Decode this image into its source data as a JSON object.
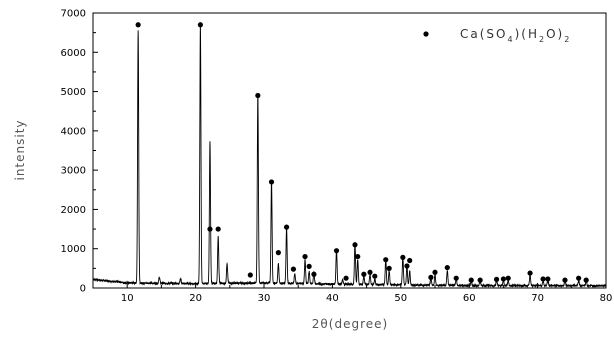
{
  "chart_data": {
    "type": "line",
    "xlabel": "2θ(degree)",
    "ylabel": "intensity",
    "xlim": [
      5,
      80
    ],
    "ylim": [
      0,
      7000
    ],
    "xticks": [
      10,
      20,
      30,
      40,
      50,
      60,
      70,
      80
    ],
    "yticks": [
      0,
      1000,
      2000,
      3000,
      4000,
      5000,
      6000,
      7000
    ],
    "grid": false,
    "legend_position": "top-right",
    "legend": {
      "marker": "filled-circle",
      "parts": [
        {
          "text": "Ca(SO",
          "sub": false
        },
        {
          "text": "4",
          "sub": true
        },
        {
          "text": ")(H",
          "sub": false
        },
        {
          "text": "2",
          "sub": true
        },
        {
          "text": "O)",
          "sub": false
        },
        {
          "text": "2",
          "sub": true
        }
      ]
    },
    "series": [
      {
        "color": "#000000",
        "baseline": [
          [
            5,
            220
          ],
          [
            10,
            130
          ],
          [
            20,
            110
          ],
          [
            30,
            130
          ],
          [
            40,
            100
          ],
          [
            50,
            80
          ],
          [
            60,
            60
          ],
          [
            70,
            60
          ],
          [
            80,
            60
          ]
        ],
        "peaks": [
          [
            11.6,
            6450
          ],
          [
            14.7,
            160
          ],
          [
            17.8,
            130
          ],
          [
            20.7,
            6600
          ],
          [
            22.1,
            3600
          ],
          [
            23.3,
            1200
          ],
          [
            24.6,
            520
          ],
          [
            29.1,
            4800
          ],
          [
            31.1,
            2600
          ],
          [
            32.1,
            500
          ],
          [
            33.3,
            1400
          ],
          [
            34.5,
            250
          ],
          [
            36.0,
            600
          ],
          [
            36.6,
            320
          ],
          [
            37.3,
            280
          ],
          [
            40.6,
            900
          ],
          [
            41.5,
            120
          ],
          [
            43.3,
            1050
          ],
          [
            43.7,
            650
          ],
          [
            44.6,
            220
          ],
          [
            45.5,
            250
          ],
          [
            46.2,
            140
          ],
          [
            47.8,
            650
          ],
          [
            48.3,
            350
          ],
          [
            50.3,
            720
          ],
          [
            50.9,
            480
          ],
          [
            51.3,
            350
          ],
          [
            54.4,
            180
          ],
          [
            55.0,
            280
          ],
          [
            56.8,
            380
          ],
          [
            58.1,
            180
          ],
          [
            60.3,
            130
          ],
          [
            61.6,
            120
          ],
          [
            64.0,
            130
          ],
          [
            65.0,
            150
          ],
          [
            65.7,
            130
          ],
          [
            68.9,
            280
          ],
          [
            70.8,
            140
          ],
          [
            71.5,
            140
          ],
          [
            74.0,
            120
          ],
          [
            76.0,
            130
          ],
          [
            77.1,
            110
          ]
        ],
        "markers": [
          [
            11.6,
            6700
          ],
          [
            20.7,
            6700
          ],
          [
            22.1,
            1500
          ],
          [
            23.3,
            1500
          ],
          [
            29.1,
            4900
          ],
          [
            31.1,
            2700
          ],
          [
            33.3,
            1550
          ],
          [
            32.1,
            900
          ],
          [
            36.0,
            800
          ],
          [
            36.6,
            550
          ],
          [
            37.3,
            350
          ],
          [
            40.6,
            950
          ],
          [
            43.3,
            1100
          ],
          [
            43.7,
            800
          ],
          [
            44.6,
            350
          ],
          [
            45.5,
            400
          ],
          [
            46.2,
            300
          ],
          [
            47.8,
            720
          ],
          [
            48.3,
            500
          ],
          [
            50.3,
            780
          ],
          [
            50.9,
            560
          ],
          [
            51.3,
            700
          ],
          [
            54.4,
            270
          ],
          [
            55.0,
            400
          ],
          [
            56.8,
            520
          ],
          [
            58.1,
            250
          ],
          [
            60.3,
            200
          ],
          [
            61.6,
            200
          ],
          [
            64.0,
            220
          ],
          [
            65.0,
            230
          ],
          [
            65.7,
            250
          ],
          [
            68.9,
            380
          ],
          [
            70.8,
            230
          ],
          [
            71.5,
            230
          ],
          [
            74.0,
            200
          ],
          [
            76.0,
            250
          ],
          [
            77.1,
            200
          ],
          [
            28.0,
            330
          ],
          [
            34.3,
            480
          ],
          [
            42.0,
            250
          ]
        ]
      }
    ]
  }
}
